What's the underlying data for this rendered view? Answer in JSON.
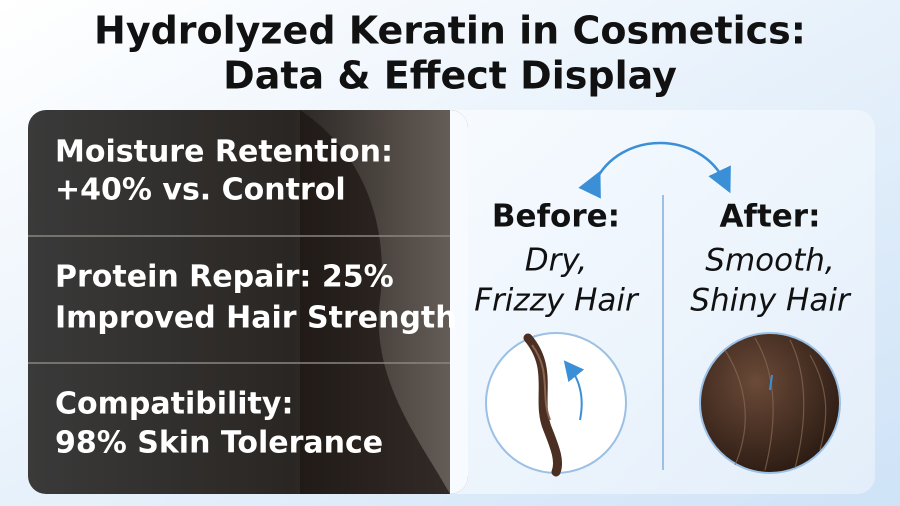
{
  "header": {
    "title_lines": [
      "Hydrolyzed Keratin in Cosmetics:",
      "Data & Effect Display"
    ]
  },
  "stats": [
    {
      "lines": [
        "Moisture Retention:",
        "+40% vs. Control"
      ]
    },
    {
      "lines": [
        "Protein Repair: 25%",
        "Improved Hair Strength"
      ]
    },
    {
      "lines": [
        "Compatibility:",
        "98% Skin Tolerance"
      ]
    }
  ],
  "comparison": {
    "before": {
      "heading": "Before:",
      "lines": [
        "Dry,",
        "Frizzy Hair"
      ]
    },
    "after": {
      "heading": "After:",
      "lines": [
        "Smooth,",
        "Shiny Hair"
      ]
    }
  }
}
